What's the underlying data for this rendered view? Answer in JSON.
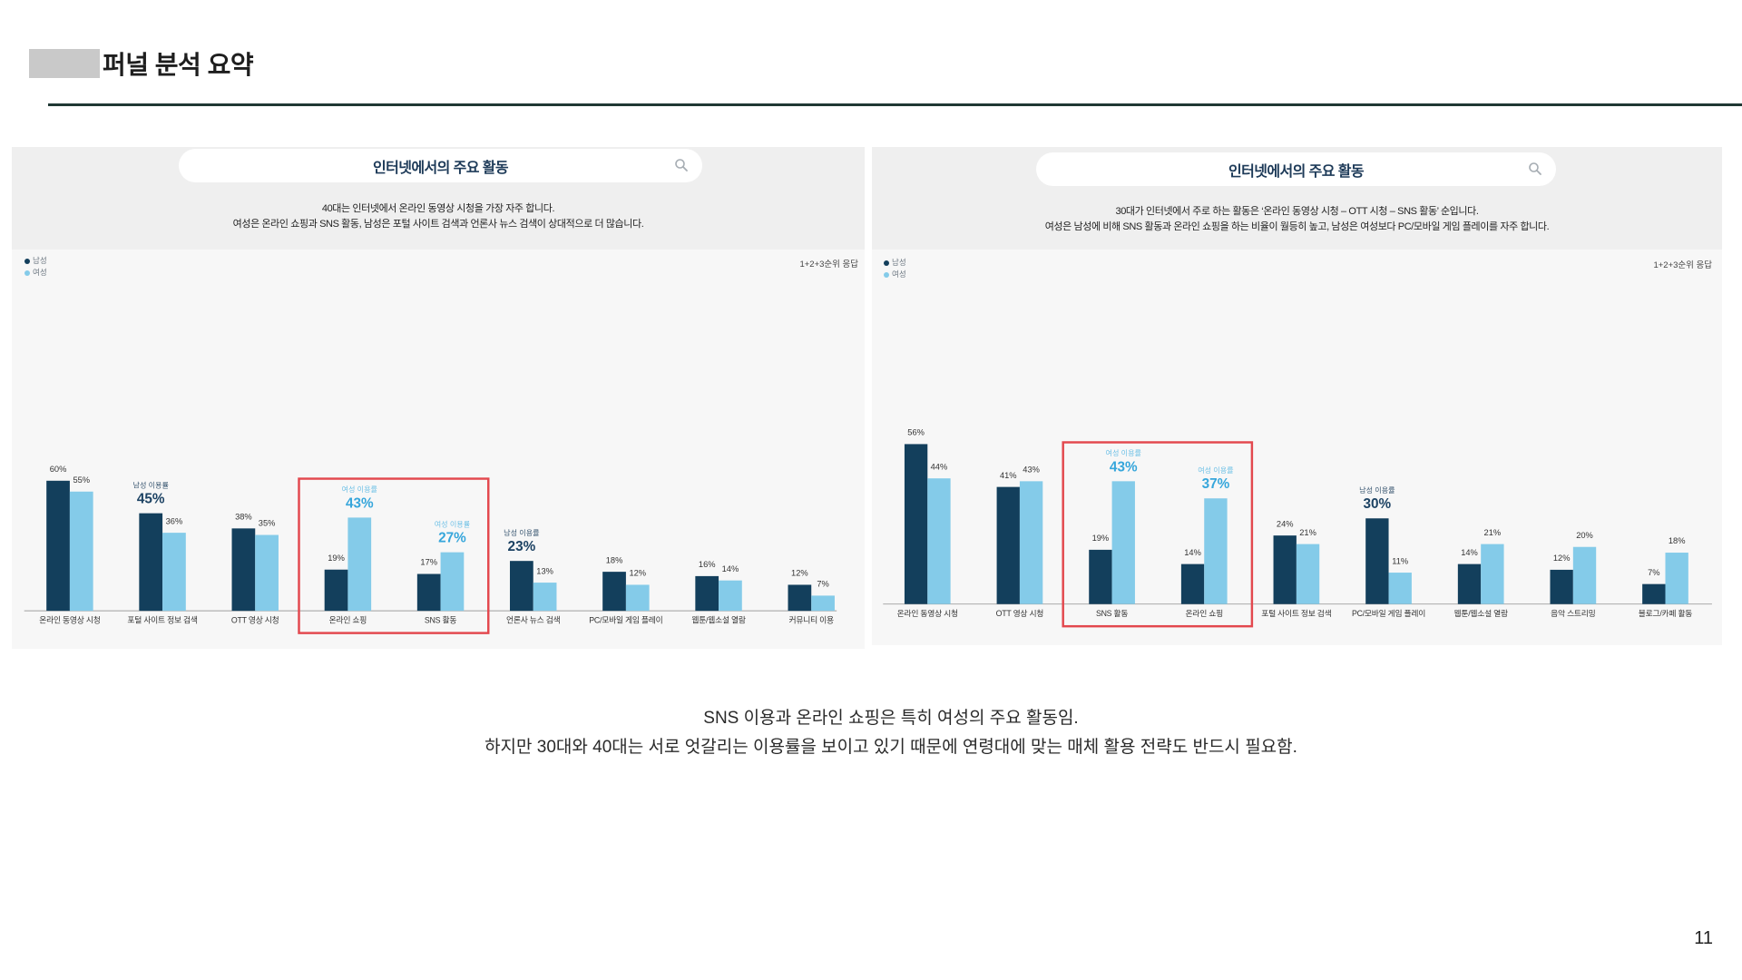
{
  "slide": {
    "title": "퍼널 분석 요약",
    "summary": [
      "SNS 이용과 온라인 쇼핑은 특히 여성의 주요 활동임.",
      "하지만 30대와 40대는 서로 엇갈리는 이용률을 보이고 있기 때문에 연령대에 맞는 매체 활용 전략도 반드시 필요함."
    ],
    "page_number": "11",
    "colors": {
      "title_rule": "#1f3834",
      "redaction_block": "#c9c9c9"
    }
  },
  "chart_data": [
    {
      "type": "bar",
      "title": "인터넷에서의 주요 활동",
      "title_icon": "search-icon",
      "description": [
        "40대는 인터넷에서 온라인 동영상 시청을 가장 자주 합니다.",
        "여성은 온라인 쇼핑과 SNS 활동, 남성은 포털 사이트 검색과 언론사 뉴스 검색이 상대적으로 더 많습니다."
      ],
      "note": "1+2+3순위 응답",
      "legend_position": "top-left",
      "grid": false,
      "categories": [
        "온라인 동영상 시청",
        "포털 사이트 정보 검색",
        "OTT 영상 시청",
        "온라인 쇼핑",
        "SNS 활동",
        "언론사 뉴스 검색",
        "PC/모바일 게임 플레이",
        "웹툰/웹소설 열람",
        "커뮤니티 이용"
      ],
      "series": [
        {
          "name": "남성",
          "values": [
            60,
            45,
            38,
            19,
            17,
            23,
            18,
            16,
            12
          ],
          "value_labels": [
            "60%",
            "45%",
            "38%",
            "19%",
            "17%",
            "23%",
            "18%",
            "16%",
            "12%"
          ]
        },
        {
          "name": "여성",
          "values": [
            55,
            36,
            35,
            43,
            27,
            13,
            12,
            14,
            7
          ],
          "value_labels": [
            "55%",
            "36%",
            "35%",
            "43%",
            "27%",
            "13%",
            "12%",
            "14%",
            "7%"
          ]
        }
      ],
      "highlights": [
        {
          "category_index": 1,
          "series_index": 0,
          "caption": "남성 이용률"
        },
        {
          "category_index": 3,
          "series_index": 1,
          "caption": "여성 이용률"
        },
        {
          "category_index": 4,
          "series_index": 1,
          "caption": "여성 이용률"
        },
        {
          "category_index": 5,
          "series_index": 0,
          "caption": "남성 이용률"
        }
      ],
      "emphasized_categories": [
        3,
        4
      ],
      "colors": {
        "male": "#133f5c",
        "female": "#84cbe9",
        "male_highlight": "#1c4263",
        "female_highlight": "#36a6db",
        "male_caption": "#35536e",
        "female_caption": "#6ec0e6",
        "emphasis_box": "#e3484e"
      }
    },
    {
      "type": "bar",
      "title": "인터넷에서의 주요 활동",
      "title_icon": "search-icon",
      "description": [
        "30대가 인터넷에서 주로 하는 활동은 ‘온라인 동영상 시청 – OTT 시청 – SNS 활동’ 순입니다.",
        "여성은 남성에 비해 SNS 활동과 온라인 쇼핑을 하는 비율이 월등히 높고, 남성은 여성보다 PC/모바일 게임 플레이를 자주 합니다."
      ],
      "note": "1+2+3순위 응답",
      "legend_position": "top-left",
      "grid": false,
      "categories": [
        "온라인 동영상 시청",
        "OTT 영상 시청",
        "SNS 활동",
        "온라인 쇼핑",
        "포털 사이트 정보 검색",
        "PC/모바일 게임 플레이",
        "웹툰/웹소설 열람",
        "음악 스트리밍",
        "블로그/카페 활동"
      ],
      "series": [
        {
          "name": "남성",
          "values": [
            56,
            41,
            19,
            14,
            24,
            30,
            14,
            12,
            7
          ],
          "value_labels": [
            "56%",
            "41%",
            "19%",
            "14%",
            "24%",
            "30%",
            "14%",
            "12%",
            "7%"
          ]
        },
        {
          "name": "여성",
          "values": [
            44,
            43,
            43,
            37,
            21,
            11,
            21,
            20,
            18
          ],
          "value_labels": [
            "44%",
            "43%",
            "43%",
            "37%",
            "21%",
            "11%",
            "21%",
            "20%",
            "18%"
          ]
        }
      ],
      "highlights": [
        {
          "category_index": 2,
          "series_index": 1,
          "caption": "여성 이용률"
        },
        {
          "category_index": 3,
          "series_index": 1,
          "caption": "여성 이용률"
        },
        {
          "category_index": 5,
          "series_index": 0,
          "caption": "남성 이용률"
        }
      ],
      "emphasized_categories": [
        2,
        3
      ],
      "colors": {
        "male": "#133f5c",
        "female": "#84cbe9",
        "male_highlight": "#1c4263",
        "female_highlight": "#36a6db",
        "male_caption": "#35536e",
        "female_caption": "#6ec0e6",
        "emphasis_box": "#e3484e"
      }
    }
  ]
}
